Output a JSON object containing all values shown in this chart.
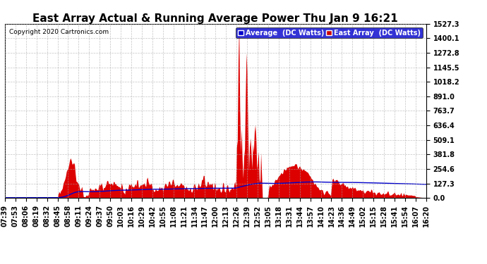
{
  "title": "East Array Actual & Running Average Power Thu Jan 9 16:21",
  "copyright": "Copyright 2020 Cartronics.com",
  "legend_labels": [
    "Average  (DC Watts)",
    "East Array  (DC Watts)"
  ],
  "legend_colors": [
    "#0000cc",
    "#cc0000"
  ],
  "y_ticks": [
    0.0,
    127.3,
    254.6,
    381.8,
    509.1,
    636.4,
    763.7,
    891.0,
    1018.2,
    1145.5,
    1272.8,
    1400.1,
    1527.3
  ],
  "ylim": [
    0.0,
    1527.3
  ],
  "background_color": "#ffffff",
  "grid_color": "#aaaaaa",
  "fill_color": "#dd0000",
  "line_color": "#0000cc",
  "x_labels": [
    "07:39",
    "07:53",
    "08:06",
    "08:19",
    "08:32",
    "08:45",
    "08:58",
    "09:11",
    "09:24",
    "09:37",
    "09:50",
    "10:03",
    "10:16",
    "10:29",
    "10:42",
    "10:55",
    "11:08",
    "11:21",
    "11:34",
    "11:47",
    "12:00",
    "12:13",
    "12:26",
    "12:39",
    "12:52",
    "13:05",
    "13:18",
    "13:31",
    "13:44",
    "13:57",
    "14:10",
    "14:23",
    "14:36",
    "14:49",
    "15:02",
    "15:15",
    "15:28",
    "15:41",
    "15:54",
    "16:07",
    "16:20"
  ],
  "title_fontsize": 11,
  "tick_fontsize": 7,
  "copyright_fontsize": 6.5
}
